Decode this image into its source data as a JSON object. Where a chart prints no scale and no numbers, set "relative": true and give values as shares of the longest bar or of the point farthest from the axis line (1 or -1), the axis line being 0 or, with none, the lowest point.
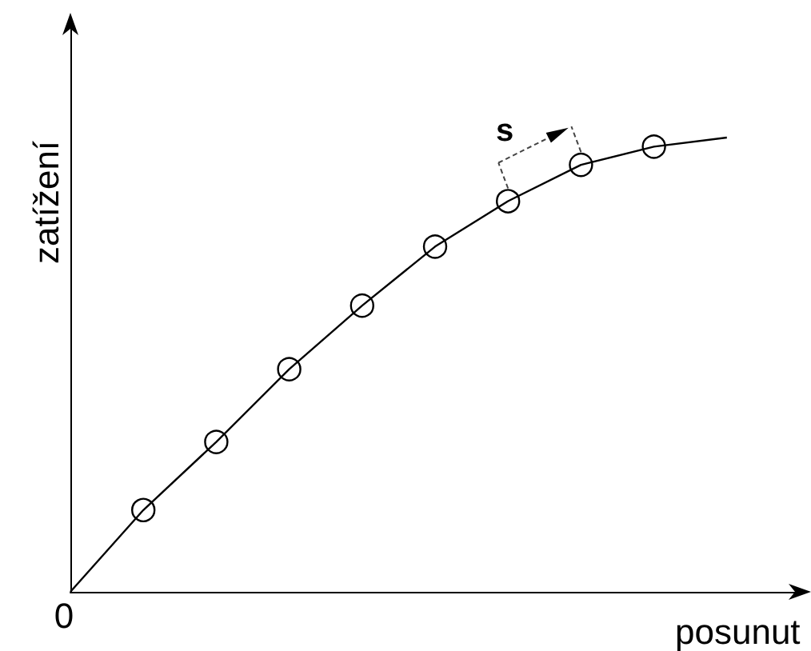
{
  "chart_data": {
    "type": "line",
    "relative": true,
    "xlabel": "posunut",
    "ylabel": "zatížení",
    "grid": false,
    "marker": "circle",
    "categories": [
      null,
      null,
      null,
      null,
      null,
      null,
      null,
      null,
      null,
      null
    ],
    "series": [
      {
        "color": "#000000",
        "values": [
          0,
          0.18,
          0.33,
          0.49,
          0.63,
          0.76,
          0.86,
          0.94,
          0.98,
          1
        ]
      }
    ],
    "annotations": [
      "0",
      "s"
    ]
  }
}
